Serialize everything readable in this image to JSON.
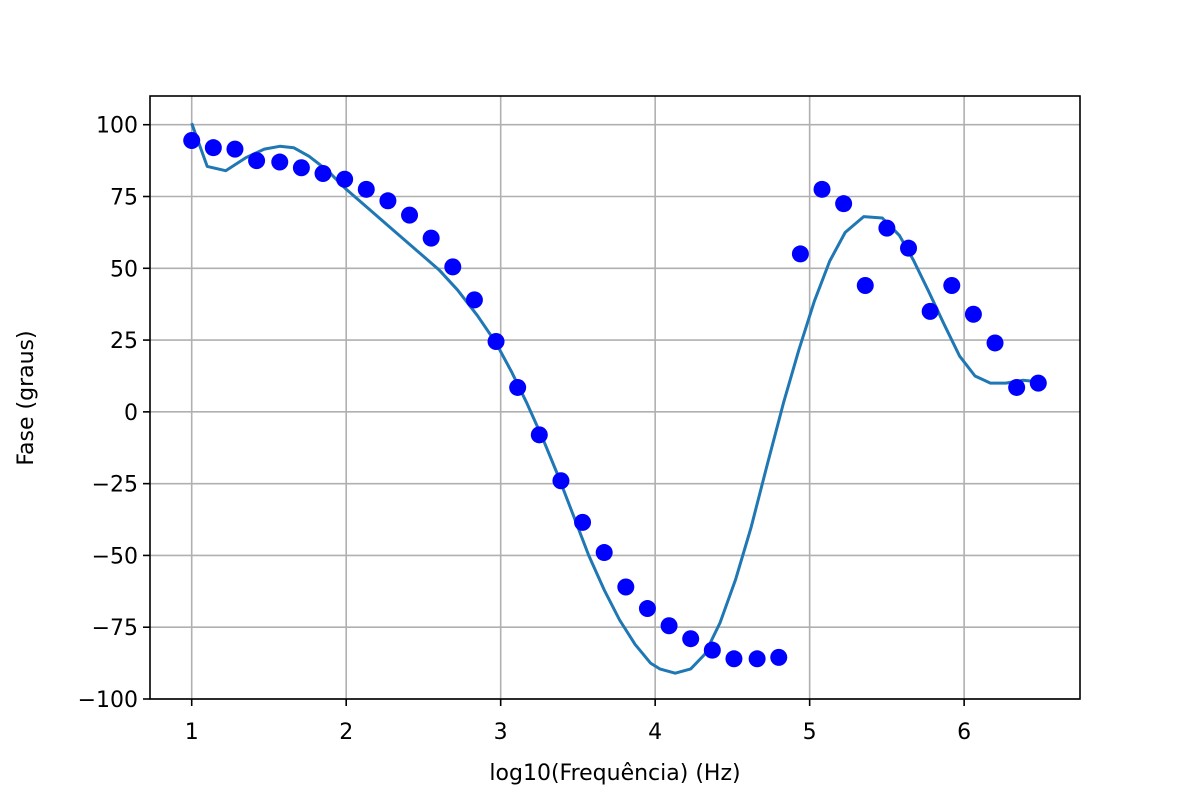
{
  "chart_data": {
    "type": "scatter",
    "title": "",
    "xlabel": "log10(Frequência) (Hz)",
    "ylabel": "Fase (graus)",
    "xlim": [
      0.73,
      6.75
    ],
    "ylim": [
      -100,
      110
    ],
    "grid": true,
    "xticks": [
      1,
      2,
      3,
      4,
      5,
      6
    ],
    "yticks": [
      -100,
      -75,
      -50,
      -25,
      0,
      25,
      50,
      75,
      100
    ],
    "xtick_labels": [
      "1",
      "2",
      "3",
      "4",
      "5",
      "6"
    ],
    "ytick_labels": [
      "−100",
      "−75",
      "−50",
      "−25",
      "0",
      "25",
      "50",
      "75",
      "100"
    ],
    "series": [
      {
        "kind": "scatter",
        "color": "#0000ff",
        "x": [
          1.0,
          1.14,
          1.28,
          1.42,
          1.57,
          1.71,
          1.85,
          1.99,
          2.13,
          2.27,
          2.41,
          2.55,
          2.69,
          2.83,
          2.97,
          3.11,
          3.25,
          3.39,
          3.53,
          3.67,
          3.81,
          3.95,
          4.09,
          4.23,
          4.37,
          4.51,
          4.66,
          4.8,
          4.94,
          5.08,
          5.22,
          5.36,
          5.5,
          5.64,
          5.78,
          5.92,
          6.06,
          6.2,
          6.34,
          6.48
        ],
        "y": [
          94.5,
          92,
          91.5,
          87.5,
          87,
          85,
          83,
          81,
          77.5,
          73.5,
          68.5,
          60.5,
          50.5,
          39,
          24.5,
          8.5,
          -8,
          -24,
          -38.5,
          -49,
          -61,
          -68.5,
          -74.5,
          -79,
          -83,
          -86,
          -86,
          -85.5,
          55,
          77.5,
          72.5,
          44,
          64,
          57,
          35,
          44,
          34,
          24,
          8.5,
          10
        ]
      },
      {
        "kind": "line",
        "color": "#1f77b4",
        "x": [
          1.0,
          1.1,
          1.22,
          1.35,
          1.47,
          1.57,
          1.66,
          1.76,
          1.88,
          2.0,
          2.15,
          2.3,
          2.45,
          2.6,
          2.72,
          2.85,
          2.97,
          3.07,
          3.17,
          3.27,
          3.37,
          3.47,
          3.57,
          3.67,
          3.77,
          3.87,
          3.97,
          4.03,
          4.13,
          4.23,
          4.32,
          4.42,
          4.52,
          4.62,
          4.72,
          4.83,
          4.93,
          5.03,
          5.13,
          5.23,
          5.35,
          5.47,
          5.58,
          5.67,
          5.77,
          5.87,
          5.97,
          6.07,
          6.17,
          6.27,
          6.38,
          6.48
        ],
        "y": [
          100.5,
          85.5,
          84,
          88.5,
          91.5,
          92.5,
          92,
          89,
          84,
          77.5,
          70.5,
          63.5,
          56.5,
          49.5,
          42.5,
          33.5,
          24,
          14,
          3,
          -9,
          -22,
          -36,
          -50,
          -62,
          -72.5,
          -81,
          -87.5,
          -89.5,
          -91,
          -89.5,
          -84.5,
          -73.5,
          -58.5,
          -40.5,
          -19.5,
          3,
          21.5,
          38.5,
          52.5,
          62.5,
          68,
          67.5,
          61.5,
          53,
          42,
          30.5,
          19.5,
          12.5,
          10,
          10,
          11,
          10.5
        ]
      }
    ]
  }
}
